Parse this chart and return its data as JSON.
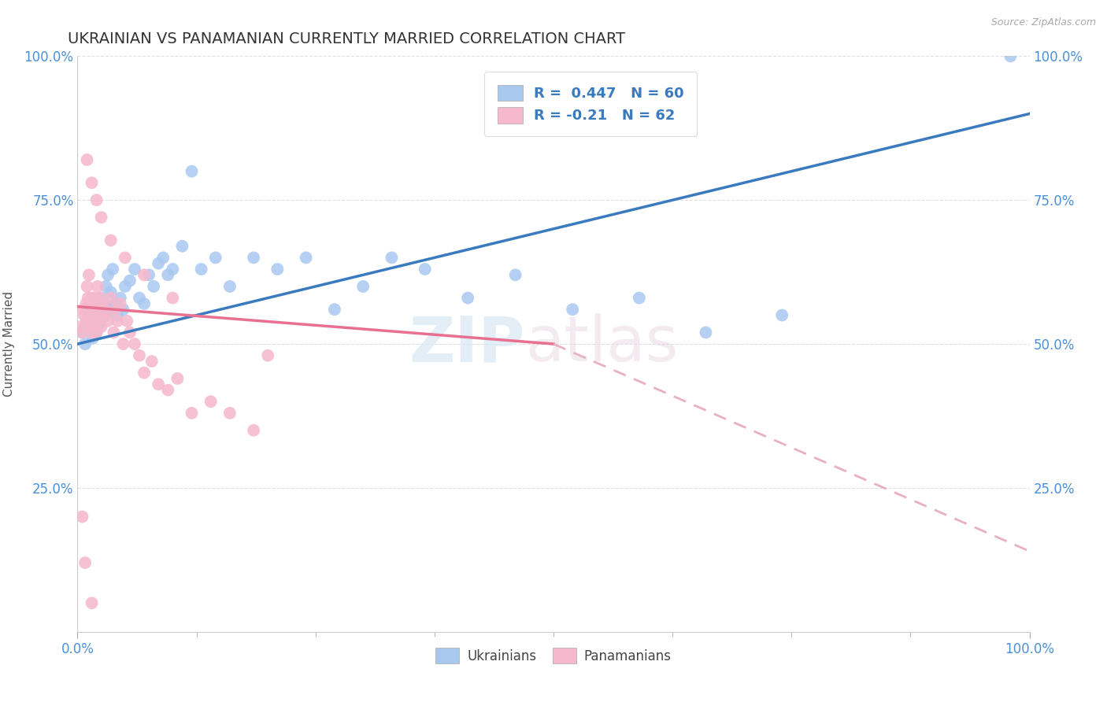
{
  "title": "UKRAINIAN VS PANAMANIAN CURRENTLY MARRIED CORRELATION CHART",
  "source_text": "Source: ZipAtlas.com",
  "ylabel": "Currently Married",
  "xlim": [
    0.0,
    1.0
  ],
  "ylim": [
    0.0,
    1.0
  ],
  "x_tick_labels": [
    "0.0%",
    "100.0%"
  ],
  "y_tick_labels": [
    "25.0%",
    "50.0%",
    "75.0%",
    "100.0%"
  ],
  "y_tick_positions": [
    0.25,
    0.5,
    0.75,
    1.0
  ],
  "watermark_zip": "ZIP",
  "watermark_atlas": "atlas",
  "ukrainian_color": "#a8c8f0",
  "panamanian_color": "#f5b8cc",
  "ukrainian_line_color": "#3a7abf",
  "panamanian_line_color": "#e87090",
  "panamanian_dash_color": "#e8b0c0",
  "R_ukrainian": 0.447,
  "N_ukrainian": 60,
  "R_panamanian": -0.21,
  "N_panamanian": 62,
  "background_color": "#ffffff",
  "grid_color": "#e0e0e0",
  "ukr_line_x0": 0.0,
  "ukr_line_y0": 0.5,
  "ukr_line_x1": 1.0,
  "ukr_line_y1": 0.9,
  "pan_line_x0": 0.0,
  "pan_line_y0": 0.565,
  "pan_line_solid_x1": 0.5,
  "pan_line_solid_y1": 0.5,
  "pan_line_dash_x1": 1.0,
  "pan_line_dash_y1": 0.14,
  "ukr_scatter_x": [
    0.005,
    0.008,
    0.01,
    0.01,
    0.012,
    0.013,
    0.015,
    0.015,
    0.016,
    0.017,
    0.018,
    0.018,
    0.019,
    0.02,
    0.02,
    0.022,
    0.023,
    0.024,
    0.025,
    0.026,
    0.028,
    0.03,
    0.032,
    0.033,
    0.035,
    0.037,
    0.04,
    0.042,
    0.045,
    0.048,
    0.05,
    0.055,
    0.06,
    0.065,
    0.07,
    0.075,
    0.08,
    0.085,
    0.09,
    0.095,
    0.1,
    0.11,
    0.12,
    0.13,
    0.145,
    0.16,
    0.185,
    0.21,
    0.24,
    0.27,
    0.3,
    0.33,
    0.365,
    0.41,
    0.46,
    0.52,
    0.59,
    0.66,
    0.74,
    0.98
  ],
  "ukr_scatter_y": [
    0.52,
    0.5,
    0.54,
    0.56,
    0.55,
    0.53,
    0.52,
    0.55,
    0.51,
    0.54,
    0.57,
    0.53,
    0.55,
    0.52,
    0.54,
    0.53,
    0.56,
    0.54,
    0.58,
    0.55,
    0.57,
    0.6,
    0.62,
    0.56,
    0.59,
    0.63,
    0.57,
    0.55,
    0.58,
    0.56,
    0.6,
    0.61,
    0.63,
    0.58,
    0.57,
    0.62,
    0.6,
    0.64,
    0.65,
    0.62,
    0.63,
    0.67,
    0.8,
    0.63,
    0.65,
    0.6,
    0.65,
    0.63,
    0.65,
    0.56,
    0.6,
    0.65,
    0.63,
    0.58,
    0.62,
    0.56,
    0.58,
    0.52,
    0.55,
    1.0
  ],
  "pan_scatter_x": [
    0.003,
    0.005,
    0.006,
    0.007,
    0.008,
    0.009,
    0.01,
    0.01,
    0.011,
    0.012,
    0.012,
    0.013,
    0.014,
    0.015,
    0.015,
    0.016,
    0.017,
    0.018,
    0.018,
    0.019,
    0.02,
    0.02,
    0.021,
    0.022,
    0.023,
    0.024,
    0.025,
    0.027,
    0.028,
    0.03,
    0.032,
    0.035,
    0.038,
    0.04,
    0.042,
    0.045,
    0.048,
    0.052,
    0.055,
    0.06,
    0.065,
    0.07,
    0.078,
    0.085,
    0.095,
    0.105,
    0.12,
    0.14,
    0.16,
    0.185,
    0.015,
    0.02,
    0.01,
    0.025,
    0.035,
    0.05,
    0.07,
    0.1,
    0.2,
    0.005,
    0.008,
    0.015
  ],
  "pan_scatter_y": [
    0.53,
    0.52,
    0.56,
    0.55,
    0.53,
    0.57,
    0.54,
    0.6,
    0.58,
    0.55,
    0.62,
    0.57,
    0.54,
    0.58,
    0.52,
    0.56,
    0.55,
    0.53,
    0.58,
    0.54,
    0.56,
    0.52,
    0.6,
    0.57,
    0.55,
    0.58,
    0.53,
    0.57,
    0.56,
    0.55,
    0.54,
    0.58,
    0.52,
    0.56,
    0.54,
    0.57,
    0.5,
    0.54,
    0.52,
    0.5,
    0.48,
    0.45,
    0.47,
    0.43,
    0.42,
    0.44,
    0.38,
    0.4,
    0.38,
    0.35,
    0.78,
    0.75,
    0.82,
    0.72,
    0.68,
    0.65,
    0.62,
    0.58,
    0.48,
    0.2,
    0.12,
    0.05
  ]
}
